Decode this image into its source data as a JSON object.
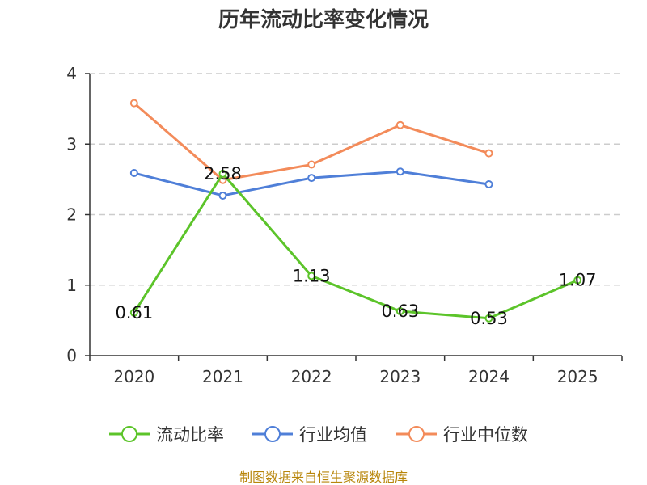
{
  "chart_data": {
    "type": "line",
    "title": "历年流动比率变化情况",
    "categories": [
      "2020",
      "2021",
      "2022",
      "2023",
      "2024",
      "2025"
    ],
    "yticks": [
      "0",
      "1",
      "2",
      "3",
      "4"
    ],
    "ylim": [
      0,
      4
    ],
    "grid": true,
    "legend_position": "bottom",
    "series": [
      {
        "name": "流动比率",
        "color": "#5cc42a",
        "values": [
          0.61,
          2.58,
          1.13,
          0.63,
          0.53,
          1.07
        ],
        "labels": [
          "0.61",
          "2.58",
          "1.13",
          "0.63",
          "0.53",
          "1.07"
        ]
      },
      {
        "name": "行业均值",
        "color": "#4f7fd8",
        "values": [
          2.59,
          2.27,
          2.52,
          2.61,
          2.43,
          null
        ]
      },
      {
        "name": "行业中位数",
        "color": "#f38b5a",
        "values": [
          3.58,
          2.49,
          2.71,
          3.27,
          2.87,
          null
        ]
      }
    ]
  },
  "footer": {
    "source": "制图数据来自恒生聚源数据库"
  }
}
